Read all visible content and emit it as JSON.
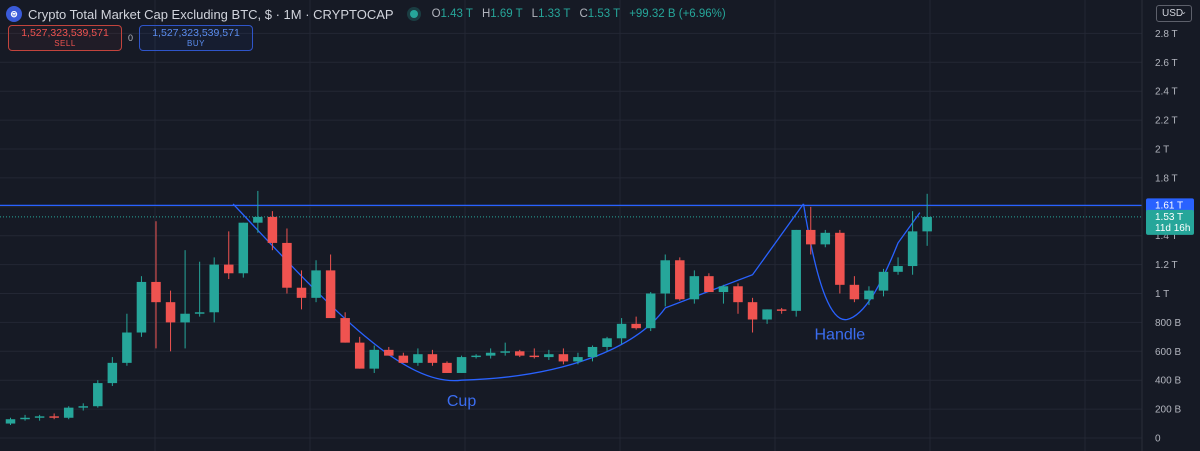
{
  "header": {
    "logo_icon": "cryptocap-logo",
    "title": "Crypto Total Market Cap Excluding BTC, $ · 1M · CRYPTOCAP",
    "ohlc": {
      "o_label": "O",
      "o_value": "1.43 T",
      "h_label": "H",
      "h_value": "1.69 T",
      "l_label": "L",
      "l_value": "1.33 T",
      "c_label": "C",
      "c_value": "1.53 T",
      "change": "+99.32 B (+6.96%)"
    }
  },
  "trade": {
    "sell_price": "1,527,323,539,571",
    "sell_label": "SELL",
    "spread": "0",
    "buy_price": "1,527,323,539,571",
    "buy_label": "BUY"
  },
  "currency": {
    "label": "USD"
  },
  "colors": {
    "up": "#26a69a",
    "down": "#ef5350",
    "pattern": "#2962ff",
    "background": "#161a25",
    "grid": "#232734"
  },
  "chart_data": {
    "type": "candlestick",
    "y_unit": "USD",
    "y_scale": "linear",
    "ylim": [
      0,
      2900000000000.0
    ],
    "y_ticks": [
      {
        "value": 0,
        "label": "0"
      },
      {
        "value": 200000000000.0,
        "label": "200 B"
      },
      {
        "value": 400000000000.0,
        "label": "400 B"
      },
      {
        "value": 600000000000.0,
        "label": "600 B"
      },
      {
        "value": 800000000000.0,
        "label": "800 B"
      },
      {
        "value": 1000000000000.0,
        "label": "1 T"
      },
      {
        "value": 1200000000000.0,
        "label": "1.2 T"
      },
      {
        "value": 1400000000000.0,
        "label": "1.4 T"
      },
      {
        "value": 1600000000000.0,
        "label": "1.6 T"
      },
      {
        "value": 1800000000000.0,
        "label": "1.8 T"
      },
      {
        "value": 2000000000000.0,
        "label": "2 T"
      },
      {
        "value": 2200000000000.0,
        "label": "2.2 T"
      },
      {
        "value": 2400000000000.0,
        "label": "2.4 T"
      },
      {
        "value": 2600000000000.0,
        "label": "2.6 T"
      },
      {
        "value": 2800000000000.0,
        "label": "2.8 T"
      }
    ],
    "candles_ohlc": [
      [
        0.1,
        0.14,
        0.09,
        0.13
      ],
      [
        0.13,
        0.16,
        0.12,
        0.14
      ],
      [
        0.14,
        0.16,
        0.12,
        0.15
      ],
      [
        0.15,
        0.17,
        0.13,
        0.14
      ],
      [
        0.14,
        0.22,
        0.13,
        0.21
      ],
      [
        0.21,
        0.24,
        0.19,
        0.22
      ],
      [
        0.22,
        0.4,
        0.21,
        0.38
      ],
      [
        0.38,
        0.56,
        0.36,
        0.52
      ],
      [
        0.52,
        0.86,
        0.5,
        0.73
      ],
      [
        0.73,
        1.12,
        0.7,
        1.08
      ],
      [
        1.08,
        1.5,
        0.62,
        0.94
      ],
      [
        0.94,
        1.02,
        0.6,
        0.8
      ],
      [
        0.8,
        1.3,
        0.62,
        0.86
      ],
      [
        0.86,
        1.22,
        0.84,
        0.87
      ],
      [
        0.87,
        1.25,
        0.8,
        1.2
      ],
      [
        1.2,
        1.43,
        1.1,
        1.14
      ],
      [
        1.14,
        1.49,
        1.11,
        1.49
      ],
      [
        1.49,
        1.71,
        1.42,
        1.53
      ],
      [
        1.53,
        1.57,
        1.3,
        1.35
      ],
      [
        1.35,
        1.45,
        1.0,
        1.04
      ],
      [
        1.04,
        1.16,
        0.89,
        0.97
      ],
      [
        0.97,
        1.23,
        0.94,
        1.16
      ],
      [
        1.16,
        1.27,
        0.88,
        0.83
      ],
      [
        0.83,
        0.87,
        0.66,
        0.66
      ],
      [
        0.66,
        0.7,
        0.48,
        0.48
      ],
      [
        0.48,
        0.64,
        0.45,
        0.61
      ],
      [
        0.61,
        0.63,
        0.57,
        0.57
      ],
      [
        0.57,
        0.59,
        0.52,
        0.52
      ],
      [
        0.52,
        0.62,
        0.5,
        0.58
      ],
      [
        0.58,
        0.61,
        0.5,
        0.52
      ],
      [
        0.52,
        0.53,
        0.45,
        0.45
      ],
      [
        0.45,
        0.57,
        0.45,
        0.56
      ],
      [
        0.56,
        0.58,
        0.55,
        0.57
      ],
      [
        0.57,
        0.62,
        0.55,
        0.59
      ],
      [
        0.59,
        0.66,
        0.57,
        0.6
      ],
      [
        0.6,
        0.61,
        0.56,
        0.57
      ],
      [
        0.57,
        0.62,
        0.55,
        0.56
      ],
      [
        0.56,
        0.61,
        0.54,
        0.58
      ],
      [
        0.58,
        0.62,
        0.51,
        0.53
      ],
      [
        0.53,
        0.59,
        0.51,
        0.56
      ],
      [
        0.56,
        0.64,
        0.53,
        0.63
      ],
      [
        0.63,
        0.7,
        0.6,
        0.69
      ],
      [
        0.69,
        0.83,
        0.65,
        0.79
      ],
      [
        0.79,
        0.84,
        0.75,
        0.76
      ],
      [
        0.76,
        1.01,
        0.74,
        1.0
      ],
      [
        1.0,
        1.27,
        0.91,
        1.23
      ],
      [
        1.23,
        1.25,
        0.95,
        0.96
      ],
      [
        0.96,
        1.16,
        0.93,
        1.12
      ],
      [
        1.12,
        1.14,
        1.02,
        1.01
      ],
      [
        1.01,
        1.06,
        0.93,
        1.05
      ],
      [
        1.05,
        1.07,
        0.86,
        0.94
      ],
      [
        0.94,
        0.97,
        0.73,
        0.82
      ],
      [
        0.82,
        0.89,
        0.79,
        0.89
      ],
      [
        0.89,
        0.9,
        0.86,
        0.88
      ],
      [
        0.88,
        1.44,
        0.84,
        1.44
      ],
      [
        1.44,
        1.6,
        1.27,
        1.34
      ],
      [
        1.34,
        1.44,
        1.32,
        1.42
      ],
      [
        1.42,
        1.44,
        1.0,
        1.06
      ],
      [
        1.06,
        1.12,
        0.94,
        0.96
      ],
      [
        0.96,
        1.05,
        0.92,
        1.02
      ],
      [
        1.02,
        1.17,
        0.98,
        1.15
      ],
      [
        1.15,
        1.25,
        1.13,
        1.19
      ],
      [
        1.19,
        1.57,
        1.13,
        1.43
      ],
      [
        1.43,
        1.69,
        1.33,
        1.53
      ]
    ],
    "values_in": "trillions USD",
    "resistance": {
      "value": 1610000000000.0,
      "label": "1.61 T"
    },
    "last_price": {
      "value": 1530000000000.0,
      "label": "1.53 T",
      "countdown": "11d 16h"
    },
    "annotations": [
      {
        "text": "Cup",
        "near_bar": 31
      },
      {
        "text": "Handle",
        "near_bar": 57
      }
    ]
  }
}
